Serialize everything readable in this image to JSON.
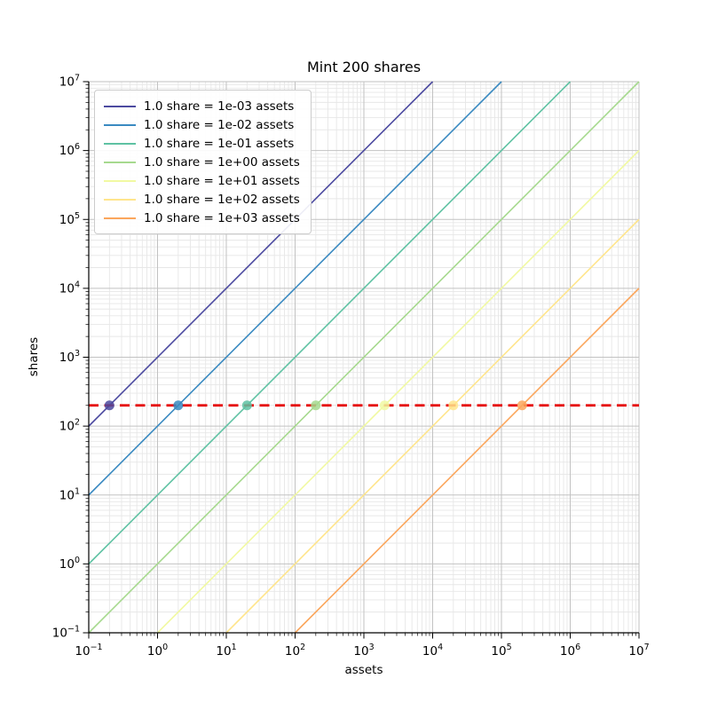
{
  "chart_data": {
    "type": "line",
    "title": "Mint 200 shares",
    "xlabel": "assets",
    "ylabel": "shares",
    "x_scale": "log",
    "y_scale": "log",
    "xlim": [
      0.1,
      10000000
    ],
    "ylim": [
      0.1,
      10000000
    ],
    "x_tick_exponents": [
      -1,
      0,
      1,
      2,
      3,
      4,
      5,
      6,
      7
    ],
    "y_tick_exponents": [
      -1,
      0,
      1,
      2,
      3,
      4,
      5,
      6,
      7
    ],
    "grid": {
      "major": true,
      "minor": true
    },
    "legend_position": "upper-left",
    "series": [
      {
        "label": "1.0 share = 1e-03 assets",
        "color": "#4c4aa0",
        "assets_per_share": 0.001,
        "mint_point": {
          "assets": 0.2,
          "shares": 200
        }
      },
      {
        "label": "1.0 share = 1e-02 assets",
        "color": "#3a8ac1",
        "assets_per_share": 0.01,
        "mint_point": {
          "assets": 2,
          "shares": 200
        }
      },
      {
        "label": "1.0 share = 1e-01 assets",
        "color": "#5fc2a3",
        "assets_per_share": 0.1,
        "mint_point": {
          "assets": 20,
          "shares": 200
        }
      },
      {
        "label": "1.0 share = 1e+00 assets",
        "color": "#a6d98e",
        "assets_per_share": 1,
        "mint_point": {
          "assets": 200,
          "shares": 200
        }
      },
      {
        "label": "1.0 share = 1e+01 assets",
        "color": "#f1f9a2",
        "assets_per_share": 10,
        "mint_point": {
          "assets": 2000,
          "shares": 200
        }
      },
      {
        "label": "1.0 share = 1e+02 assets",
        "color": "#ffe58c",
        "assets_per_share": 100,
        "mint_point": {
          "assets": 20000,
          "shares": 200
        }
      },
      {
        "label": "1.0 share = 1e+03 assets",
        "color": "#fba65c",
        "assets_per_share": 1000,
        "mint_point": {
          "assets": 200000,
          "shares": 200
        }
      }
    ],
    "target_line": {
      "shares": 200,
      "color": "#e50000",
      "linestyle": "dashed"
    },
    "colors": {
      "grid_major": "#c2c2c2",
      "grid_minor": "#e7e7e7",
      "axis": "#000000",
      "text": "#000000",
      "legend_border": "#cccccc"
    }
  }
}
